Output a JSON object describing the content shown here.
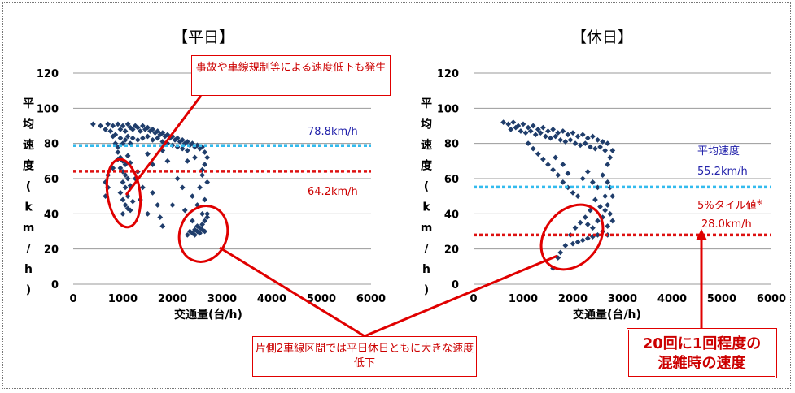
{
  "chart_data": [
    {
      "type": "scatter",
      "title": "【平日】",
      "xlabel": "交通量(台/h)",
      "ylabel": "平均速度(km/h)",
      "xlim": [
        0,
        6000
      ],
      "ylim": [
        0,
        120
      ],
      "xticks": [
        "0",
        "1000",
        "2000",
        "3000",
        "4000",
        "5000",
        "6000"
      ],
      "yticks": [
        "0",
        "20",
        "40",
        "60",
        "80",
        "100",
        "120"
      ],
      "grid": true,
      "lines": [
        {
          "label": "78.8km/h",
          "y": 78.8,
          "color": "#33bbee"
        },
        {
          "label": "64.2km/h",
          "y": 64.2,
          "color": "#dd1111"
        }
      ],
      "points": [
        [
          400,
          91
        ],
        [
          550,
          90
        ],
        [
          650,
          88
        ],
        [
          700,
          91
        ],
        [
          750,
          87
        ],
        [
          800,
          90
        ],
        [
          850,
          85
        ],
        [
          900,
          91
        ],
        [
          950,
          88
        ],
        [
          1000,
          90
        ],
        [
          1050,
          87
        ],
        [
          1100,
          91
        ],
        [
          1150,
          89
        ],
        [
          1200,
          88
        ],
        [
          1250,
          90
        ],
        [
          1300,
          89
        ],
        [
          1350,
          87
        ],
        [
          1400,
          90
        ],
        [
          1450,
          88
        ],
        [
          1500,
          89
        ],
        [
          1550,
          87
        ],
        [
          1600,
          88
        ],
        [
          1650,
          86
        ],
        [
          1700,
          87
        ],
        [
          1750,
          85
        ],
        [
          1800,
          86
        ],
        [
          1850,
          84
        ],
        [
          1900,
          85
        ],
        [
          1950,
          83
        ],
        [
          2000,
          84
        ],
        [
          2050,
          82
        ],
        [
          2100,
          83
        ],
        [
          2150,
          81
        ],
        [
          2200,
          82
        ],
        [
          2250,
          80
        ],
        [
          2300,
          81
        ],
        [
          2350,
          79
        ],
        [
          2400,
          80
        ],
        [
          2450,
          78
        ],
        [
          2500,
          79
        ],
        [
          2550,
          77
        ],
        [
          2600,
          78
        ],
        [
          2650,
          75
        ],
        [
          800,
          84
        ],
        [
          850,
          80
        ],
        [
          900,
          78
        ],
        [
          950,
          83
        ],
        [
          1000,
          80
        ],
        [
          1050,
          82
        ],
        [
          1100,
          84
        ],
        [
          1150,
          80
        ],
        [
          1200,
          83
        ],
        [
          1300,
          82
        ],
        [
          1400,
          83
        ],
        [
          1500,
          84
        ],
        [
          1600,
          82
        ],
        [
          1700,
          83
        ],
        [
          1800,
          81
        ],
        [
          1900,
          80
        ],
        [
          2000,
          79
        ],
        [
          2100,
          78
        ],
        [
          2200,
          77
        ],
        [
          2300,
          76
        ],
        [
          900,
          75
        ],
        [
          950,
          72
        ],
        [
          1000,
          70
        ],
        [
          1050,
          68
        ],
        [
          950,
          66
        ],
        [
          1000,
          64
        ],
        [
          1050,
          62
        ],
        [
          1100,
          60
        ],
        [
          900,
          71
        ],
        [
          1100,
          73
        ],
        [
          1150,
          69
        ],
        [
          1000,
          58
        ],
        [
          1050,
          55
        ],
        [
          950,
          52
        ],
        [
          1100,
          50
        ],
        [
          1000,
          48
        ],
        [
          1050,
          45
        ],
        [
          1100,
          43
        ],
        [
          1000,
          40
        ],
        [
          1150,
          42
        ],
        [
          1200,
          47
        ],
        [
          1150,
          56
        ],
        [
          1250,
          60
        ],
        [
          1300,
          64
        ],
        [
          650,
          58
        ],
        [
          700,
          55
        ],
        [
          650,
          50
        ],
        [
          700,
          62
        ],
        [
          800,
          66
        ],
        [
          1400,
          55
        ],
        [
          1350,
          48
        ],
        [
          1500,
          40
        ],
        [
          1600,
          52
        ],
        [
          1700,
          45
        ],
        [
          1750,
          38
        ],
        [
          1800,
          33
        ],
        [
          2000,
          45
        ],
        [
          2100,
          60
        ],
        [
          2200,
          55
        ],
        [
          2250,
          42
        ],
        [
          2400,
          50
        ],
        [
          2500,
          45
        ],
        [
          2550,
          55
        ],
        [
          2600,
          62
        ],
        [
          2650,
          48
        ],
        [
          2700,
          40
        ],
        [
          2700,
          58
        ],
        [
          2650,
          68
        ],
        [
          2700,
          72
        ],
        [
          2600,
          65
        ],
        [
          2300,
          70
        ],
        [
          2450,
          72
        ],
        [
          2350,
          30
        ],
        [
          2400,
          29
        ],
        [
          2450,
          31
        ],
        [
          2500,
          30
        ],
        [
          2550,
          32
        ],
        [
          2600,
          34
        ],
        [
          2650,
          36
        ],
        [
          2600,
          31
        ],
        [
          2550,
          29
        ],
        [
          2500,
          33
        ],
        [
          2450,
          28
        ],
        [
          2650,
          30
        ],
        [
          2700,
          38
        ],
        [
          2600,
          40
        ],
        [
          2400,
          36
        ],
        [
          2300,
          28
        ],
        [
          1900,
          70
        ],
        [
          1600,
          68
        ],
        [
          1500,
          74
        ],
        [
          1800,
          76
        ]
      ]
    },
    {
      "type": "scatter",
      "title": "【休日】",
      "xlabel": "交通量(台/h)",
      "ylabel": "平均速度(km/h)",
      "xlim": [
        0,
        6000
      ],
      "ylim": [
        0,
        120
      ],
      "xticks": [
        "0",
        "1000",
        "2000",
        "3000",
        "4000",
        "5000",
        "6000"
      ],
      "yticks": [
        "0",
        "20",
        "40",
        "60",
        "80",
        "100",
        "120"
      ],
      "grid": true,
      "lines": [
        {
          "label": "55.2km/h",
          "y": 55.2,
          "color": "#33bbee"
        },
        {
          "label": "28.0km/h",
          "y": 28.0,
          "color": "#dd1111"
        }
      ],
      "points": [
        [
          600,
          92
        ],
        [
          700,
          91
        ],
        [
          800,
          92
        ],
        [
          900,
          90
        ],
        [
          1000,
          91
        ],
        [
          1100,
          89
        ],
        [
          1200,
          90
        ],
        [
          1300,
          88
        ],
        [
          1400,
          89
        ],
        [
          1500,
          87
        ],
        [
          1600,
          88
        ],
        [
          1700,
          86
        ],
        [
          1800,
          87
        ],
        [
          1900,
          85
        ],
        [
          2000,
          86
        ],
        [
          2100,
          84
        ],
        [
          2200,
          85
        ],
        [
          2300,
          83
        ],
        [
          2400,
          84
        ],
        [
          2500,
          82
        ],
        [
          2600,
          81
        ],
        [
          2700,
          80
        ],
        [
          750,
          88
        ],
        [
          850,
          89
        ],
        [
          950,
          87
        ],
        [
          1050,
          86
        ],
        [
          1150,
          87
        ],
        [
          1250,
          85
        ],
        [
          1350,
          86
        ],
        [
          1450,
          84
        ],
        [
          1550,
          83
        ],
        [
          1650,
          84
        ],
        [
          1750,
          82
        ],
        [
          1850,
          81
        ],
        [
          1950,
          82
        ],
        [
          2050,
          80
        ],
        [
          2150,
          79
        ],
        [
          2250,
          80
        ],
        [
          2350,
          78
        ],
        [
          2450,
          77
        ],
        [
          2550,
          78
        ],
        [
          2650,
          76
        ],
        [
          1100,
          80
        ],
        [
          1200,
          77
        ],
        [
          1300,
          74
        ],
        [
          1400,
          71
        ],
        [
          1500,
          68
        ],
        [
          1600,
          65
        ],
        [
          1700,
          62
        ],
        [
          1800,
          58
        ],
        [
          1900,
          55
        ],
        [
          2000,
          52
        ],
        [
          2100,
          50
        ],
        [
          1650,
          72
        ],
        [
          1800,
          68
        ],
        [
          1900,
          63
        ],
        [
          2200,
          60
        ],
        [
          2300,
          64
        ],
        [
          2400,
          58
        ],
        [
          2500,
          55
        ],
        [
          2600,
          62
        ],
        [
          2700,
          68
        ],
        [
          2750,
          72
        ],
        [
          2800,
          76
        ],
        [
          2650,
          50
        ],
        [
          2700,
          45
        ],
        [
          2750,
          40
        ],
        [
          2800,
          36
        ],
        [
          2700,
          33
        ],
        [
          2600,
          30
        ],
        [
          2500,
          28
        ],
        [
          2400,
          27
        ],
        [
          2300,
          26
        ],
        [
          2200,
          25
        ],
        [
          2100,
          24
        ],
        [
          2000,
          23
        ],
        [
          2600,
          38
        ],
        [
          2550,
          44
        ],
        [
          2450,
          48
        ],
        [
          2350,
          42
        ],
        [
          2250,
          38
        ],
        [
          2150,
          35
        ],
        [
          2050,
          32
        ],
        [
          1950,
          28
        ],
        [
          1850,
          22
        ],
        [
          1750,
          18
        ],
        [
          1700,
          15
        ],
        [
          1600,
          9
        ],
        [
          2500,
          36
        ],
        [
          2400,
          32
        ],
        [
          2300,
          34
        ],
        [
          2700,
          58
        ],
        [
          2750,
          55
        ],
        [
          2800,
          50
        ],
        [
          2650,
          42
        ],
        [
          2700,
          28
        ]
      ]
    }
  ],
  "annotations": {
    "weekday_speed_blue": "78.8km/h",
    "weekday_speed_red": "64.2km/h",
    "holiday_avg_label": "平均速度",
    "holiday_avg_value": "55.2km/h",
    "holiday_pct_label": "5%タイル値",
    "holiday_pct_mark": "※",
    "holiday_pct_value": "28.0km/h"
  },
  "callouts": {
    "accident": "事故や車線規制等による速度低下も発生",
    "two_lane": "片側2車線区間では平日休日ともに大きな速度低下",
    "congestion": "20回に1回程度の混雑時の速度"
  },
  "colors": {
    "marker": "#1f3d6b",
    "avg_line": "#33bbee",
    "pct_line": "#dd1111",
    "callout": "#e00000"
  }
}
